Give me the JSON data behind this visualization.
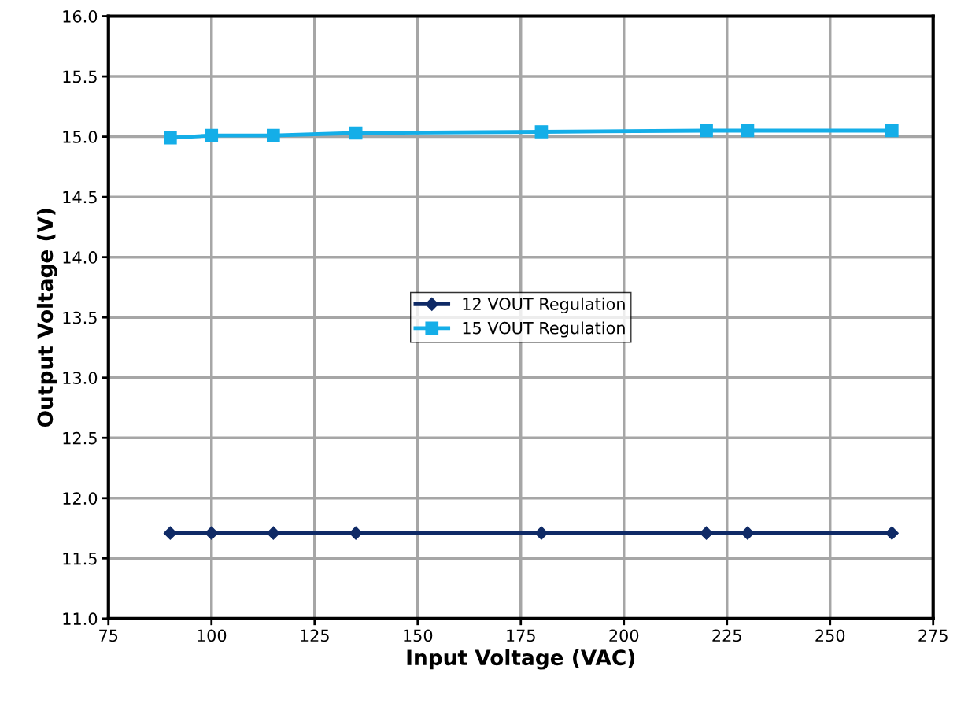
{
  "chart_data": {
    "type": "line",
    "xlabel": "Input Voltage (VAC)",
    "ylabel": "Output Voltage (V)",
    "x": [
      90,
      100,
      115,
      135,
      180,
      220,
      230,
      265
    ],
    "series": [
      {
        "name": "12 VOUT Regulation",
        "color": "#0f2a66",
        "marker": "diamond",
        "values": [
          11.71,
          11.71,
          11.71,
          11.71,
          11.71,
          11.71,
          11.71,
          11.71
        ]
      },
      {
        "name": "15 VOUT Regulation",
        "color": "#14aee8",
        "marker": "square",
        "values": [
          14.99,
          15.01,
          15.01,
          15.03,
          15.04,
          15.05,
          15.05,
          15.05
        ]
      }
    ],
    "xlim": [
      75,
      275
    ],
    "xticks": [
      75,
      100,
      125,
      150,
      175,
      200,
      225,
      250,
      275
    ],
    "ylim": [
      11.0,
      16.0
    ],
    "yticks": [
      {
        "value": 11,
        "label": "11.0"
      },
      {
        "value": 11.5,
        "label": "11.5"
      },
      {
        "value": 12,
        "label": "12.0"
      },
      {
        "value": 12.5,
        "label": "12.5"
      },
      {
        "value": 13,
        "label": "13.0"
      },
      {
        "value": 13.5,
        "label": "13.5"
      },
      {
        "value": 14,
        "label": "14.0"
      },
      {
        "value": 14.5,
        "label": "14.5"
      },
      {
        "value": 15,
        "label": "15.0"
      },
      {
        "value": 15.5,
        "label": "15.5"
      },
      {
        "value": 16,
        "label": "16.0"
      }
    ],
    "grid": true,
    "legend": "center",
    "line_style": "solid"
  }
}
